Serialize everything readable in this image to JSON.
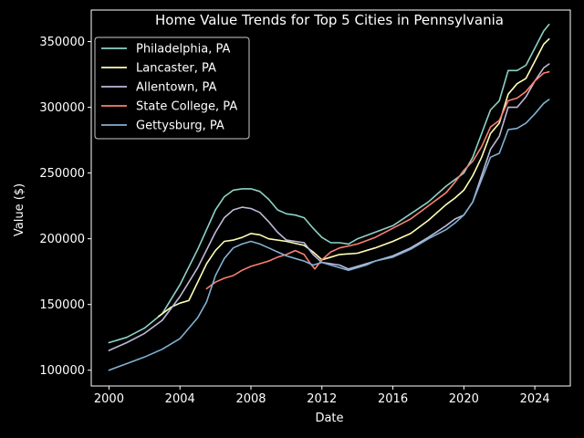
{
  "chart_data": {
    "type": "line",
    "title": "Home Value Trends for Top 5 Cities in Pennsylvania",
    "xlabel": "Date",
    "ylabel": "Value ($)",
    "xlim": [
      1999.0,
      2026.0
    ],
    "ylim": [
      88000,
      374000
    ],
    "x_ticks": [
      2000,
      2004,
      2008,
      2012,
      2016,
      2020,
      2024
    ],
    "x_tick_labels": [
      "2000",
      "2004",
      "2008",
      "2012",
      "2016",
      "2020",
      "2024"
    ],
    "y_ticks": [
      100000,
      150000,
      200000,
      250000,
      300000,
      350000
    ],
    "y_tick_labels": [
      "100000",
      "150000",
      "200000",
      "250000",
      "300000",
      "350000"
    ],
    "grid": false,
    "legend_position": "top-left",
    "series": [
      {
        "name": "Philadelphia, PA",
        "color": "#8dd3c7",
        "points": [
          [
            2000.0,
            121000
          ],
          [
            2001.0,
            125000
          ],
          [
            2002.0,
            132000
          ],
          [
            2003.0,
            143000
          ],
          [
            2004.0,
            165000
          ],
          [
            2005.0,
            192000
          ],
          [
            2006.0,
            222000
          ],
          [
            2006.5,
            232000
          ],
          [
            2007.0,
            237000
          ],
          [
            2007.5,
            238000
          ],
          [
            2008.0,
            238000
          ],
          [
            2008.5,
            236000
          ],
          [
            2009.0,
            230000
          ],
          [
            2009.5,
            222000
          ],
          [
            2010.0,
            219000
          ],
          [
            2010.5,
            218000
          ],
          [
            2011.0,
            216000
          ],
          [
            2011.5,
            208000
          ],
          [
            2012.0,
            201000
          ],
          [
            2012.5,
            197000
          ],
          [
            2013.0,
            197000
          ],
          [
            2013.5,
            196000
          ],
          [
            2014.0,
            200000
          ],
          [
            2015.0,
            205000
          ],
          [
            2016.0,
            210000
          ],
          [
            2017.0,
            219000
          ],
          [
            2018.0,
            228000
          ],
          [
            2019.0,
            240000
          ],
          [
            2019.5,
            245000
          ],
          [
            2020.0,
            250000
          ],
          [
            2020.5,
            262000
          ],
          [
            2021.0,
            280000
          ],
          [
            2021.5,
            298000
          ],
          [
            2022.0,
            305000
          ],
          [
            2022.5,
            328000
          ],
          [
            2023.0,
            328000
          ],
          [
            2023.5,
            332000
          ],
          [
            2024.0,
            345000
          ],
          [
            2024.5,
            358000
          ],
          [
            2024.8,
            363000
          ]
        ]
      },
      {
        "name": "Lancaster, PA",
        "color": "#ffffb3",
        "points": [
          [
            2002.8,
            141000
          ],
          [
            2003.0,
            143000
          ],
          [
            2003.5,
            148000
          ],
          [
            2004.0,
            151000
          ],
          [
            2004.5,
            153000
          ],
          [
            2005.0,
            167000
          ],
          [
            2005.5,
            181000
          ],
          [
            2006.0,
            191000
          ],
          [
            2006.5,
            198000
          ],
          [
            2007.0,
            199000
          ],
          [
            2007.5,
            201000
          ],
          [
            2008.0,
            204000
          ],
          [
            2008.5,
            203000
          ],
          [
            2009.0,
            200000
          ],
          [
            2010.0,
            198000
          ],
          [
            2011.0,
            195000
          ],
          [
            2011.5,
            190000
          ],
          [
            2012.0,
            184000
          ],
          [
            2012.5,
            186000
          ],
          [
            2013.0,
            188000
          ],
          [
            2014.0,
            189000
          ],
          [
            2015.0,
            193000
          ],
          [
            2016.0,
            198000
          ],
          [
            2017.0,
            204000
          ],
          [
            2018.0,
            214000
          ],
          [
            2019.0,
            226000
          ],
          [
            2019.5,
            231000
          ],
          [
            2020.0,
            237000
          ],
          [
            2020.5,
            248000
          ],
          [
            2021.0,
            262000
          ],
          [
            2021.5,
            280000
          ],
          [
            2022.0,
            288000
          ],
          [
            2022.5,
            310000
          ],
          [
            2023.0,
            318000
          ],
          [
            2023.5,
            322000
          ],
          [
            2024.0,
            335000
          ],
          [
            2024.5,
            348000
          ],
          [
            2024.8,
            352000
          ]
        ]
      },
      {
        "name": "Allentown, PA",
        "color": "#bebada",
        "points": [
          [
            2000.0,
            115000
          ],
          [
            2001.0,
            121000
          ],
          [
            2002.0,
            128000
          ],
          [
            2003.0,
            138000
          ],
          [
            2004.0,
            156000
          ],
          [
            2005.0,
            178000
          ],
          [
            2006.0,
            205000
          ],
          [
            2006.5,
            216000
          ],
          [
            2007.0,
            222000
          ],
          [
            2007.5,
            224000
          ],
          [
            2008.0,
            223000
          ],
          [
            2008.5,
            220000
          ],
          [
            2009.0,
            213000
          ],
          [
            2009.5,
            205000
          ],
          [
            2010.0,
            199000
          ],
          [
            2010.5,
            198000
          ],
          [
            2011.0,
            197000
          ],
          [
            2011.5,
            188000
          ],
          [
            2012.0,
            182000
          ],
          [
            2012.5,
            181000
          ],
          [
            2013.0,
            180000
          ],
          [
            2013.5,
            177000
          ],
          [
            2014.0,
            179000
          ],
          [
            2015.0,
            183000
          ],
          [
            2016.0,
            187000
          ],
          [
            2017.0,
            193000
          ],
          [
            2018.0,
            201000
          ],
          [
            2019.0,
            210000
          ],
          [
            2019.5,
            215000
          ],
          [
            2020.0,
            218000
          ],
          [
            2020.5,
            228000
          ],
          [
            2021.0,
            248000
          ],
          [
            2021.5,
            268000
          ],
          [
            2022.0,
            278000
          ],
          [
            2022.5,
            300000
          ],
          [
            2023.0,
            300000
          ],
          [
            2023.5,
            308000
          ],
          [
            2024.0,
            320000
          ],
          [
            2024.5,
            330000
          ],
          [
            2024.8,
            333000
          ]
        ]
      },
      {
        "name": "State College, PA",
        "color": "#fb8072",
        "points": [
          [
            2005.5,
            162000
          ],
          [
            2006.0,
            167000
          ],
          [
            2006.5,
            170000
          ],
          [
            2007.0,
            172000
          ],
          [
            2007.5,
            176000
          ],
          [
            2008.0,
            179000
          ],
          [
            2008.5,
            181000
          ],
          [
            2009.0,
            183000
          ],
          [
            2009.5,
            186000
          ],
          [
            2010.0,
            188000
          ],
          [
            2010.5,
            191000
          ],
          [
            2011.0,
            188000
          ],
          [
            2011.3,
            182000
          ],
          [
            2011.6,
            177000
          ],
          [
            2012.0,
            184000
          ],
          [
            2012.5,
            190000
          ],
          [
            2013.0,
            193000
          ],
          [
            2014.0,
            196000
          ],
          [
            2015.0,
            201000
          ],
          [
            2016.0,
            208000
          ],
          [
            2017.0,
            215000
          ],
          [
            2018.0,
            225000
          ],
          [
            2019.0,
            235000
          ],
          [
            2019.5,
            243000
          ],
          [
            2020.0,
            252000
          ],
          [
            2020.5,
            259000
          ],
          [
            2021.0,
            270000
          ],
          [
            2021.5,
            285000
          ],
          [
            2022.0,
            290000
          ],
          [
            2022.5,
            305000
          ],
          [
            2023.0,
            307000
          ],
          [
            2023.5,
            312000
          ],
          [
            2024.0,
            320000
          ],
          [
            2024.5,
            326000
          ],
          [
            2024.8,
            327000
          ]
        ]
      },
      {
        "name": "Gettysburg, PA",
        "color": "#80b1d3",
        "points": [
          [
            2000.0,
            100000
          ],
          [
            2001.0,
            105000
          ],
          [
            2002.0,
            110000
          ],
          [
            2003.0,
            116000
          ],
          [
            2004.0,
            124000
          ],
          [
            2005.0,
            140000
          ],
          [
            2005.5,
            152000
          ],
          [
            2006.0,
            172000
          ],
          [
            2006.5,
            185000
          ],
          [
            2007.0,
            193000
          ],
          [
            2007.5,
            196000
          ],
          [
            2008.0,
            198000
          ],
          [
            2008.5,
            196000
          ],
          [
            2009.0,
            193000
          ],
          [
            2009.5,
            190000
          ],
          [
            2010.0,
            187000
          ],
          [
            2010.5,
            185000
          ],
          [
            2011.0,
            183000
          ],
          [
            2011.5,
            180000
          ],
          [
            2012.0,
            182000
          ],
          [
            2012.5,
            180000
          ],
          [
            2013.0,
            178000
          ],
          [
            2013.5,
            176000
          ],
          [
            2014.0,
            178000
          ],
          [
            2014.5,
            180000
          ],
          [
            2015.0,
            183000
          ],
          [
            2016.0,
            186000
          ],
          [
            2017.0,
            192000
          ],
          [
            2018.0,
            200000
          ],
          [
            2019.0,
            207000
          ],
          [
            2019.5,
            212000
          ],
          [
            2020.0,
            218000
          ],
          [
            2020.5,
            228000
          ],
          [
            2021.0,
            245000
          ],
          [
            2021.5,
            262000
          ],
          [
            2022.0,
            265000
          ],
          [
            2022.5,
            283000
          ],
          [
            2023.0,
            284000
          ],
          [
            2023.5,
            288000
          ],
          [
            2024.0,
            295000
          ],
          [
            2024.5,
            303000
          ],
          [
            2024.8,
            306000
          ]
        ]
      }
    ]
  }
}
